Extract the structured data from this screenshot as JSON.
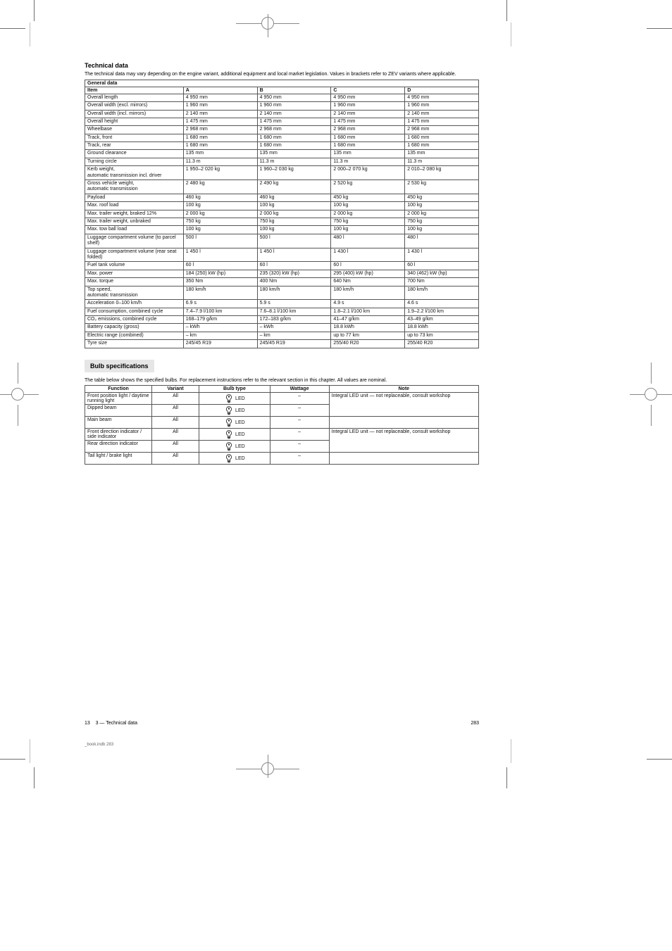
{
  "colors": {
    "rule": "#555555",
    "heading_bg": "#e6e6e6",
    "text": "#111111",
    "crop": "#888888"
  },
  "typography": {
    "body_pt": 7,
    "heading_pt": 9,
    "footer_pt": 7
  },
  "header": {
    "title": "Technical data",
    "lead": "The technical data may vary depending on the engine variant, additional equipment and local market legislation. Values in brackets refer to ZEV variants where applicable."
  },
  "spec_table": {
    "title_row": "General data",
    "columns": [
      "Item",
      "A",
      "B",
      "C",
      "D"
    ],
    "rows": [
      {
        "label": "Overall length",
        "vals": [
          "4 950",
          "4 950",
          "4 950",
          "4 950"
        ],
        "unit": "mm"
      },
      {
        "label": "Overall width (excl. mirrors)",
        "vals": [
          "1 960",
          "1 960",
          "1 960",
          "1 960"
        ],
        "unit": "mm"
      },
      {
        "label": "Overall width (incl. mirrors)",
        "vals": [
          "2 140",
          "2 140",
          "2 140",
          "2 140"
        ],
        "unit": "mm"
      },
      {
        "label": "Overall height",
        "vals": [
          "1 475",
          "1 475",
          "1 475",
          "1 475"
        ],
        "unit": "mm"
      },
      {
        "label": "Wheelbase",
        "vals": [
          "2 968",
          "2 968",
          "2 968",
          "2 968"
        ],
        "unit": "mm"
      },
      {
        "label": "Track, front",
        "vals": [
          "1 680",
          "1 680",
          "1 680",
          "1 680"
        ],
        "unit": "mm"
      },
      {
        "label": "Track, rear",
        "vals": [
          "1 680",
          "1 680",
          "1 680",
          "1 680"
        ],
        "unit": "mm"
      },
      {
        "label": "Ground clearance",
        "vals": [
          "135",
          "135",
          "135",
          "135"
        ],
        "unit": "mm"
      },
      {
        "label": "Turning circle",
        "vals": [
          "11.3",
          "11.3",
          "11.3",
          "11.3"
        ],
        "unit": "m"
      },
      {
        "label": "Kerb weight, automatic transmission incl. driver",
        "vals": [
          "1 950–2 020",
          "1 960–2 030",
          "2 000–2 070",
          "2 010–2 080"
        ],
        "unit": "kg",
        "multi": true
      },
      {
        "label": "Gross vehicle weight, automatic transmission",
        "vals": [
          "2 480",
          "2 490",
          "2 520",
          "2 530"
        ],
        "unit": "kg",
        "multi": true
      },
      {
        "label": "Payload",
        "vals": [
          "460",
          "460",
          "450",
          "450"
        ],
        "unit": "kg"
      },
      {
        "label": "Max. roof load",
        "vals": [
          "100",
          "100",
          "100",
          "100"
        ],
        "unit": "kg"
      },
      {
        "label": "Max. trailer weight, braked 12%",
        "vals": [
          "2 000",
          "2 000",
          "2 000",
          "2 000"
        ],
        "unit": "kg"
      },
      {
        "label": "Max. trailer weight, unbraked",
        "vals": [
          "750",
          "750",
          "750",
          "750"
        ],
        "unit": "kg"
      },
      {
        "label": "Max. tow ball load",
        "vals": [
          "100",
          "100",
          "100",
          "100"
        ],
        "unit": "kg"
      },
      {
        "label": "Luggage compartment volume (to parcel shelf)",
        "vals": [
          "500",
          "500",
          "480",
          "480"
        ],
        "unit": "l"
      },
      {
        "label": "Luggage compartment volume (rear seat folded)",
        "vals": [
          "1 450",
          "1 450",
          "1 430",
          "1 430"
        ],
        "unit": "l"
      },
      {
        "label": "Fuel tank volume",
        "vals": [
          "60",
          "60",
          "60",
          "60"
        ],
        "unit": "l"
      },
      {
        "label": "Max. power",
        "vals": [
          "184 (250)",
          "235 (320)",
          "295 (400)",
          "340 (462)"
        ],
        "unit": "kW (hp)"
      },
      {
        "label": "Max. torque",
        "vals": [
          "350",
          "400",
          "640",
          "700"
        ],
        "unit": "Nm"
      },
      {
        "label": "Top speed, automatic transmission",
        "vals": [
          "180",
          "180",
          "180",
          "180"
        ],
        "unit": "km/h",
        "multi": true
      },
      {
        "label": "Acceleration 0–100 km/h",
        "vals": [
          "6.9",
          "5.9",
          "4.9",
          "4.6"
        ],
        "unit": "s"
      },
      {
        "label": "Fuel consumption, combined cycle",
        "vals": [
          "7.4–7.9",
          "7.6–8.1",
          "1.8–2.1",
          "1.9–2.2"
        ],
        "unit": "l/100 km"
      },
      {
        "label": "CO₂ emissions, combined cycle",
        "vals": [
          "168–179",
          "172–183",
          "41–47",
          "43–49"
        ],
        "unit": "g/km"
      },
      {
        "label": "Battery capacity (gross)",
        "vals": [
          "–",
          "–",
          "18.8",
          "18.8"
        ],
        "unit": "kWh"
      },
      {
        "label": "Electric range (combined)",
        "vals": [
          "–",
          "–",
          "up to 77",
          "up to 73"
        ],
        "unit": "km"
      },
      {
        "label": "Tyre size",
        "vals": [
          "245/45 R19",
          "245/45 R19",
          "255/40 R20",
          "255/40 R20"
        ],
        "unit": ""
      }
    ]
  },
  "bulb_section": {
    "heading": "Bulb specifications",
    "lead": "The table below shows the specified bulbs. For replacement instructions refer to the relevant section in this chapter. All values are nominal.",
    "columns": [
      "Function",
      "Variant",
      "Bulb type",
      "Wattage",
      "Note"
    ],
    "rows": [
      {
        "fn": "Front position light / daytime running light",
        "variant": "All",
        "type": "LED",
        "w": "–",
        "note": "Integral LED unit — not replaceable, consult workshop"
      },
      {
        "fn": "Dipped beam",
        "variant": "All",
        "type": "LED",
        "w": "–",
        "note": "Integral LED unit — not replaceable, consult workshop"
      },
      {
        "fn": "Main beam",
        "variant": "All",
        "type": "LED",
        "w": "–",
        "note": ""
      },
      {
        "fn": "Front direction indicator / side indicator",
        "variant": "All",
        "type": "LED",
        "w": "–",
        "note": "Integral LED unit — not replaceable, consult workshop"
      },
      {
        "fn": "Rear direction indicator",
        "variant": "All",
        "type": "LED",
        "w": "–",
        "note": "Integral LED unit — not replaceable, consult workshop"
      },
      {
        "fn": "Tail light / brake light",
        "variant": "All",
        "type": "LED",
        "w": "–",
        "note": ""
      }
    ]
  },
  "footer": {
    "left_a": "13",
    "left_b": "3 — Technical data",
    "page": "283"
  },
  "filetag": "_book.indb   283"
}
